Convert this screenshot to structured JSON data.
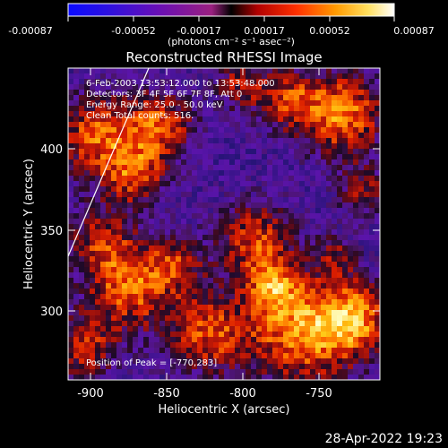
{
  "colorbar": {
    "tick_labels": [
      "-0.00087",
      "-0.00052",
      "-0.00017",
      "0.00017",
      "0.00052",
      "0.00087"
    ],
    "units": "(photons cm⁻² s⁻¹ asec⁻²)",
    "min": -0.00087,
    "max": 0.00087
  },
  "plot": {
    "title": "Reconstructed RHESSI Image",
    "annotation_lines": [
      "6-Feb-2003 13:53:12.000 to 13:53:48.000",
      "Detectors: 3F 4F 5F 6F 7F 8F, Att 0",
      "Energy Range: 25.0 - 50.0 keV",
      "Clean   Total counts: 516."
    ],
    "peak_text": "Position of Peak = [-770,283]",
    "xlabel": "Heliocentric X (arcsec)",
    "ylabel": "Heliocentric Y (arcsec)",
    "x_ticks": [
      "-900",
      "-850",
      "-800",
      "-750"
    ],
    "y_ticks": [
      "400",
      "350",
      "300"
    ]
  },
  "footer": {
    "date": "28-Apr-2022 19:23"
  },
  "colors": {
    "background": "#000000",
    "limb_line": "#ffffff"
  }
}
